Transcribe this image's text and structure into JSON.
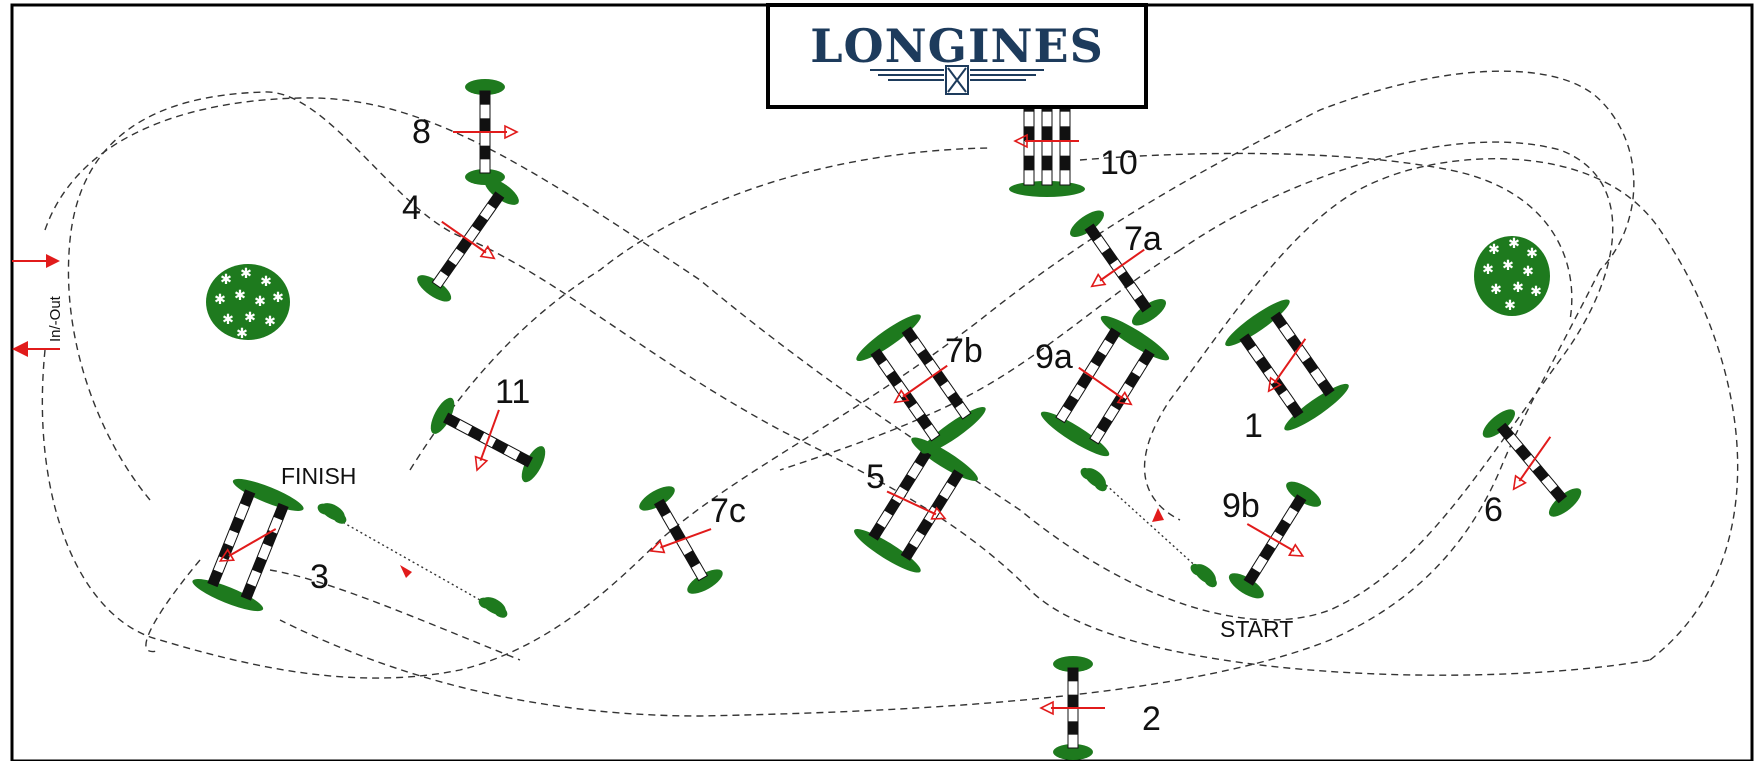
{
  "sponsor": {
    "brand": "LONGINES",
    "color": "#1d3b5c"
  },
  "arena": {
    "entrance_label": "In/-Out"
  },
  "markers": {
    "start": "START",
    "finish": "FINISH"
  },
  "fences": [
    {
      "id": "1",
      "label": "1"
    },
    {
      "id": "2",
      "label": "2"
    },
    {
      "id": "3",
      "label": "3"
    },
    {
      "id": "4",
      "label": "4"
    },
    {
      "id": "5",
      "label": "5"
    },
    {
      "id": "6",
      "label": "6"
    },
    {
      "id": "7a",
      "label": "7a"
    },
    {
      "id": "7b",
      "label": "7b"
    },
    {
      "id": "7c",
      "label": "7c"
    },
    {
      "id": "8",
      "label": "8"
    },
    {
      "id": "9a",
      "label": "9a"
    },
    {
      "id": "9b",
      "label": "9b"
    },
    {
      "id": "10",
      "label": "10"
    },
    {
      "id": "11",
      "label": "11"
    }
  ],
  "colors": {
    "pole_dark": "#111111",
    "wing": "#1e7a1e",
    "arrow": "#e11b1b",
    "path": "#333333",
    "border": "#000000"
  }
}
